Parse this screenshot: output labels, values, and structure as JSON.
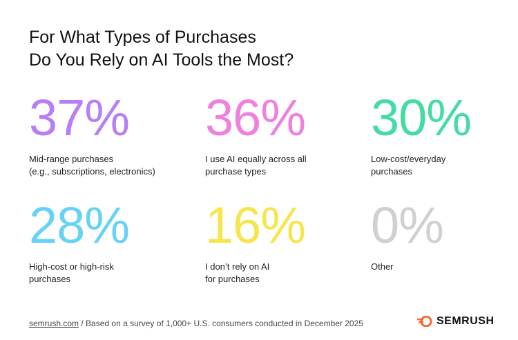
{
  "title": [
    "For What Types of Purchases",
    "Do You Rely on AI Tools the Most?"
  ],
  "stats": [
    {
      "value": "37%",
      "color": "#b77ef5",
      "label": [
        "Mid-range purchases",
        "(e.g., subscriptions, electronics)"
      ]
    },
    {
      "value": "36%",
      "color": "#f07fe0",
      "label": [
        "I use AI equally across all",
        "purchase types"
      ]
    },
    {
      "value": "30%",
      "color": "#45dca3",
      "label": [
        "Low-cost/everyday",
        "purchases"
      ]
    },
    {
      "value": "28%",
      "color": "#66d3f4",
      "label": [
        "High-cost or high-risk",
        "purchases"
      ]
    },
    {
      "value": "16%",
      "color": "#f6e64e",
      "label": [
        "I don’t rely on AI",
        "for purchases"
      ]
    },
    {
      "value": "0%",
      "color": "#d0d0d0",
      "label": [
        "Other"
      ]
    }
  ],
  "footer": {
    "link": "semrush.com",
    "note": "/ Based on a survey of 1,000+ U.S. consumers conducted in December 2025",
    "brand": "SEMRUSH"
  }
}
